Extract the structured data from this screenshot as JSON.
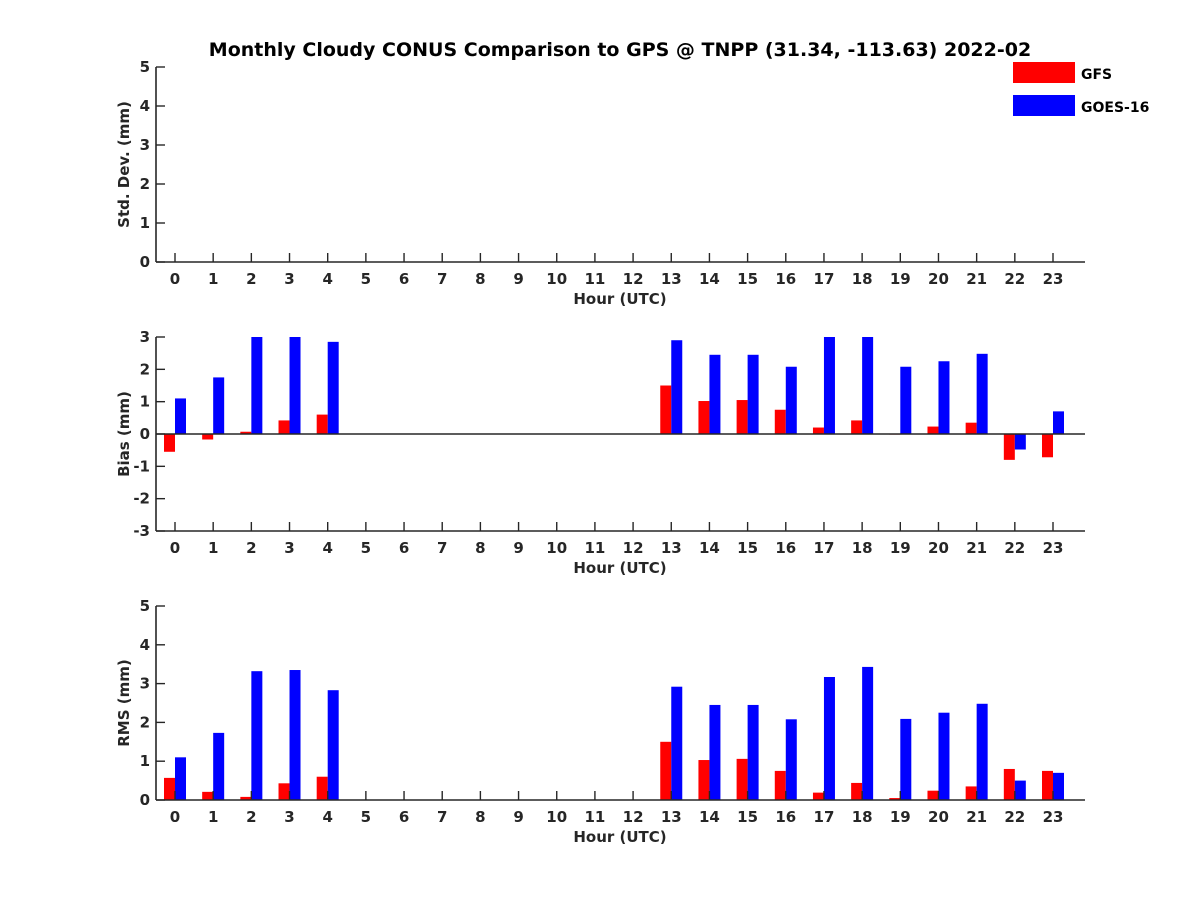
{
  "title": "Monthly Cloudy CONUS Comparison to GPS @ TNPP (31.34, -113.63) 2022-02",
  "legend": [
    {
      "label": "GFS",
      "color": "#ff0000"
    },
    {
      "label": "GOES-16",
      "color": "#0000ff"
    }
  ],
  "chart_data": [
    {
      "type": "bar",
      "ylabel": "Std. Dev. (mm)",
      "xlabel": "Hour (UTC)",
      "ylim": [
        0,
        5
      ],
      "yticks": [
        "0",
        "1",
        "2",
        "3",
        "4",
        "5"
      ],
      "categories": [
        "0",
        "1",
        "2",
        "3",
        "4",
        "5",
        "6",
        "7",
        "8",
        "9",
        "10",
        "11",
        "12",
        "13",
        "14",
        "15",
        "16",
        "17",
        "18",
        "19",
        "20",
        "21",
        "22",
        "23"
      ],
      "series": [
        {
          "name": "GFS",
          "color": "#ff0000",
          "values": [
            null,
            null,
            null,
            null,
            null,
            null,
            null,
            null,
            null,
            null,
            null,
            null,
            null,
            null,
            null,
            null,
            null,
            null,
            null,
            null,
            null,
            null,
            null,
            null
          ]
        },
        {
          "name": "GOES-16",
          "color": "#0000ff",
          "values": [
            null,
            null,
            null,
            null,
            null,
            null,
            null,
            null,
            null,
            null,
            null,
            null,
            null,
            null,
            null,
            null,
            null,
            null,
            null,
            null,
            null,
            null,
            null,
            null
          ]
        }
      ]
    },
    {
      "type": "bar",
      "ylabel": "Bias (mm)",
      "xlabel": "Hour (UTC)",
      "ylim": [
        -3,
        3
      ],
      "yticks": [
        "-3",
        "-2",
        "-1",
        "0",
        "1",
        "2",
        "3"
      ],
      "zero_line": true,
      "categories": [
        "0",
        "1",
        "2",
        "3",
        "4",
        "5",
        "6",
        "7",
        "8",
        "9",
        "10",
        "11",
        "12",
        "13",
        "14",
        "15",
        "16",
        "17",
        "18",
        "19",
        "20",
        "21",
        "22",
        "23"
      ],
      "series": [
        {
          "name": "GFS",
          "color": "#ff0000",
          "values": [
            -0.55,
            -0.17,
            0.07,
            0.42,
            0.6,
            null,
            null,
            null,
            null,
            null,
            null,
            null,
            null,
            1.5,
            1.02,
            1.05,
            0.75,
            0.2,
            0.42,
            0.0,
            0.23,
            0.35,
            -0.8,
            -0.72
          ]
        },
        {
          "name": "GOES-16",
          "color": "#0000ff",
          "values": [
            1.1,
            1.75,
            3.0,
            3.0,
            2.85,
            null,
            null,
            null,
            null,
            null,
            null,
            null,
            null,
            2.9,
            2.45,
            2.45,
            2.08,
            3.0,
            3.0,
            2.08,
            2.25,
            2.48,
            -0.48,
            0.7
          ]
        }
      ]
    },
    {
      "type": "bar",
      "ylabel": "RMS (mm)",
      "xlabel": "Hour (UTC)",
      "ylim": [
        0,
        5
      ],
      "yticks": [
        "0",
        "1",
        "2",
        "3",
        "4",
        "5"
      ],
      "categories": [
        "0",
        "1",
        "2",
        "3",
        "4",
        "5",
        "6",
        "7",
        "8",
        "9",
        "10",
        "11",
        "12",
        "13",
        "14",
        "15",
        "16",
        "17",
        "18",
        "19",
        "20",
        "21",
        "22",
        "23"
      ],
      "series": [
        {
          "name": "GFS",
          "color": "#ff0000",
          "values": [
            0.57,
            0.21,
            0.08,
            0.43,
            0.6,
            null,
            null,
            null,
            null,
            null,
            null,
            null,
            null,
            1.5,
            1.03,
            1.06,
            0.75,
            0.19,
            0.44,
            0.05,
            0.24,
            0.35,
            0.8,
            0.75
          ]
        },
        {
          "name": "GOES-16",
          "color": "#0000ff",
          "values": [
            1.1,
            1.73,
            3.32,
            3.35,
            2.83,
            null,
            null,
            null,
            null,
            null,
            null,
            null,
            null,
            2.92,
            2.45,
            2.45,
            2.08,
            3.17,
            3.43,
            2.09,
            2.25,
            2.48,
            0.5,
            0.7
          ]
        }
      ]
    }
  ]
}
